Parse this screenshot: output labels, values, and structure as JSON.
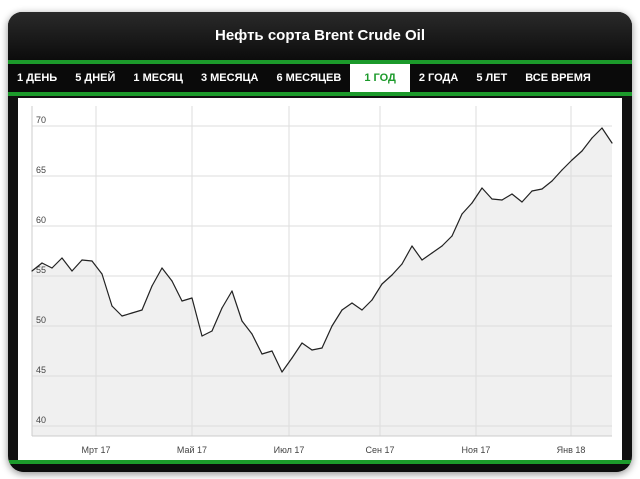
{
  "header": {
    "title": "Нефть сорта Brent Crude Oil"
  },
  "tabs": [
    {
      "label": "1 ДЕНЬ",
      "active": false
    },
    {
      "label": "5 ДНЕЙ",
      "active": false
    },
    {
      "label": "1 МЕСЯЦ",
      "active": false
    },
    {
      "label": "3 МЕСЯЦА",
      "active": false
    },
    {
      "label": "6 МЕСЯЦЕВ",
      "active": false
    },
    {
      "label": "1 ГОД",
      "active": true
    },
    {
      "label": "2 ГОДА",
      "active": false
    },
    {
      "label": "5 ЛЕТ",
      "active": false
    },
    {
      "label": "ВСЕ ВРЕМЯ",
      "active": false
    }
  ],
  "colors": {
    "accent": "#1c9a2b",
    "line": "#222222",
    "area": "#f0f0f0",
    "grid": "#dddddd"
  },
  "chart_data": {
    "type": "area",
    "title": "Нефть сорта Brent Crude Oil",
    "xlabel": "",
    "ylabel": "",
    "ylim": [
      39,
      72
    ],
    "xlim": [
      0,
      58
    ],
    "grid": true,
    "y_ticks": [
      40,
      45,
      50,
      55,
      60,
      65,
      70
    ],
    "x_ticks": [
      {
        "x": 6.4,
        "label": "Мрт 17"
      },
      {
        "x": 16,
        "label": "Май 17"
      },
      {
        "x": 25.7,
        "label": "Июл 17"
      },
      {
        "x": 34.8,
        "label": "Сен 17"
      },
      {
        "x": 44.4,
        "label": "Ноя 17"
      },
      {
        "x": 53.9,
        "label": "Янв 18"
      }
    ],
    "series": [
      {
        "values": [
          [
            0,
            55.5
          ],
          [
            1,
            56.3
          ],
          [
            2,
            55.8
          ],
          [
            3,
            56.8
          ],
          [
            4,
            55.5
          ],
          [
            5,
            56.6
          ],
          [
            6,
            56.5
          ],
          [
            7,
            55.2
          ],
          [
            8,
            52.0
          ],
          [
            9,
            51.0
          ],
          [
            10,
            51.3
          ],
          [
            11,
            51.6
          ],
          [
            12,
            54.0
          ],
          [
            13,
            55.8
          ],
          [
            14,
            54.5
          ],
          [
            15,
            52.5
          ],
          [
            16,
            52.8
          ],
          [
            17,
            49.0
          ],
          [
            18,
            49.5
          ],
          [
            19,
            51.8
          ],
          [
            20,
            53.5
          ],
          [
            21,
            50.5
          ],
          [
            22,
            49.2
          ],
          [
            23,
            47.2
          ],
          [
            24,
            47.5
          ],
          [
            25,
            45.4
          ],
          [
            26,
            46.8
          ],
          [
            27,
            48.3
          ],
          [
            28,
            47.6
          ],
          [
            29,
            47.8
          ],
          [
            30,
            50.0
          ],
          [
            31,
            51.6
          ],
          [
            32,
            52.3
          ],
          [
            33,
            51.6
          ],
          [
            34,
            52.6
          ],
          [
            35,
            54.2
          ],
          [
            36,
            55.1
          ],
          [
            37,
            56.2
          ],
          [
            38,
            58.0
          ],
          [
            39,
            56.6
          ],
          [
            40,
            57.3
          ],
          [
            41,
            58.0
          ],
          [
            42,
            59.0
          ],
          [
            43,
            61.2
          ],
          [
            44,
            62.3
          ],
          [
            45,
            63.8
          ],
          [
            46,
            62.7
          ],
          [
            47,
            62.6
          ],
          [
            48,
            63.2
          ],
          [
            49,
            62.4
          ],
          [
            50,
            63.5
          ],
          [
            51,
            63.7
          ],
          [
            52,
            64.5
          ],
          [
            53,
            65.6
          ],
          [
            54,
            66.6
          ],
          [
            55,
            67.5
          ],
          [
            56,
            68.8
          ],
          [
            57,
            69.8
          ],
          [
            58,
            68.3
          ]
        ]
      }
    ]
  }
}
